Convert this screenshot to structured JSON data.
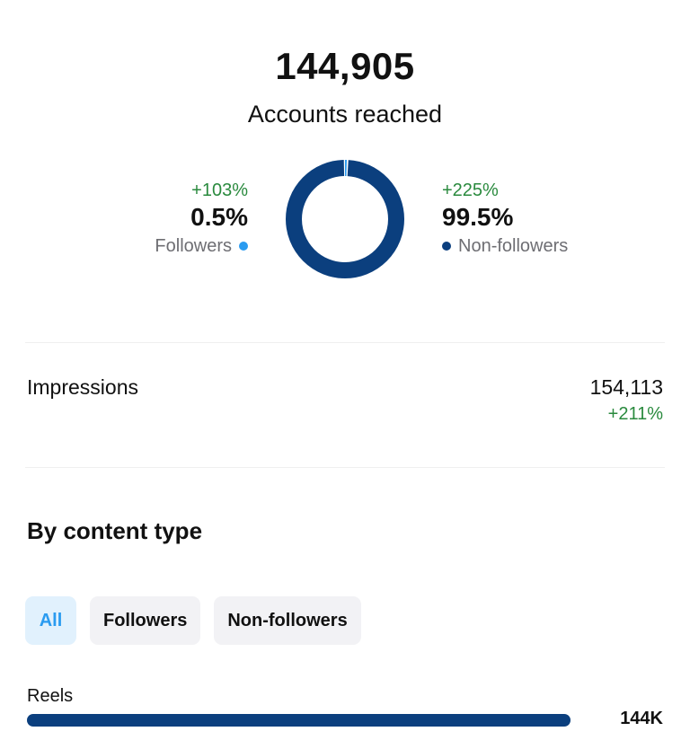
{
  "summary": {
    "accounts_reached_value": "144,905",
    "accounts_reached_label": "Accounts reached"
  },
  "audience_split": {
    "followers": {
      "change": "+103%",
      "percent": "0.5%",
      "label": "Followers",
      "color": "#2a9bf0",
      "share": 0.5
    },
    "non_followers": {
      "change": "+225%",
      "percent": "99.5%",
      "label": "Non-followers",
      "color": "#0b3f7e",
      "share": 99.5
    }
  },
  "impressions": {
    "label": "Impressions",
    "value": "154,113",
    "change": "+211%"
  },
  "content_type": {
    "title": "By content type",
    "filters": [
      {
        "label": "All",
        "active": true
      },
      {
        "label": "Followers",
        "active": false
      },
      {
        "label": "Non-followers",
        "active": false
      }
    ],
    "rows": [
      {
        "label": "Reels",
        "value": "144K",
        "fraction": 1.0
      }
    ]
  },
  "colors": {
    "positive_change": "#2a8a3e",
    "followers_accent": "#2a9bf0",
    "non_followers_accent": "#0b3f7e",
    "active_chip_bg": "#e1f1fd",
    "chip_bg": "#f2f2f5"
  }
}
